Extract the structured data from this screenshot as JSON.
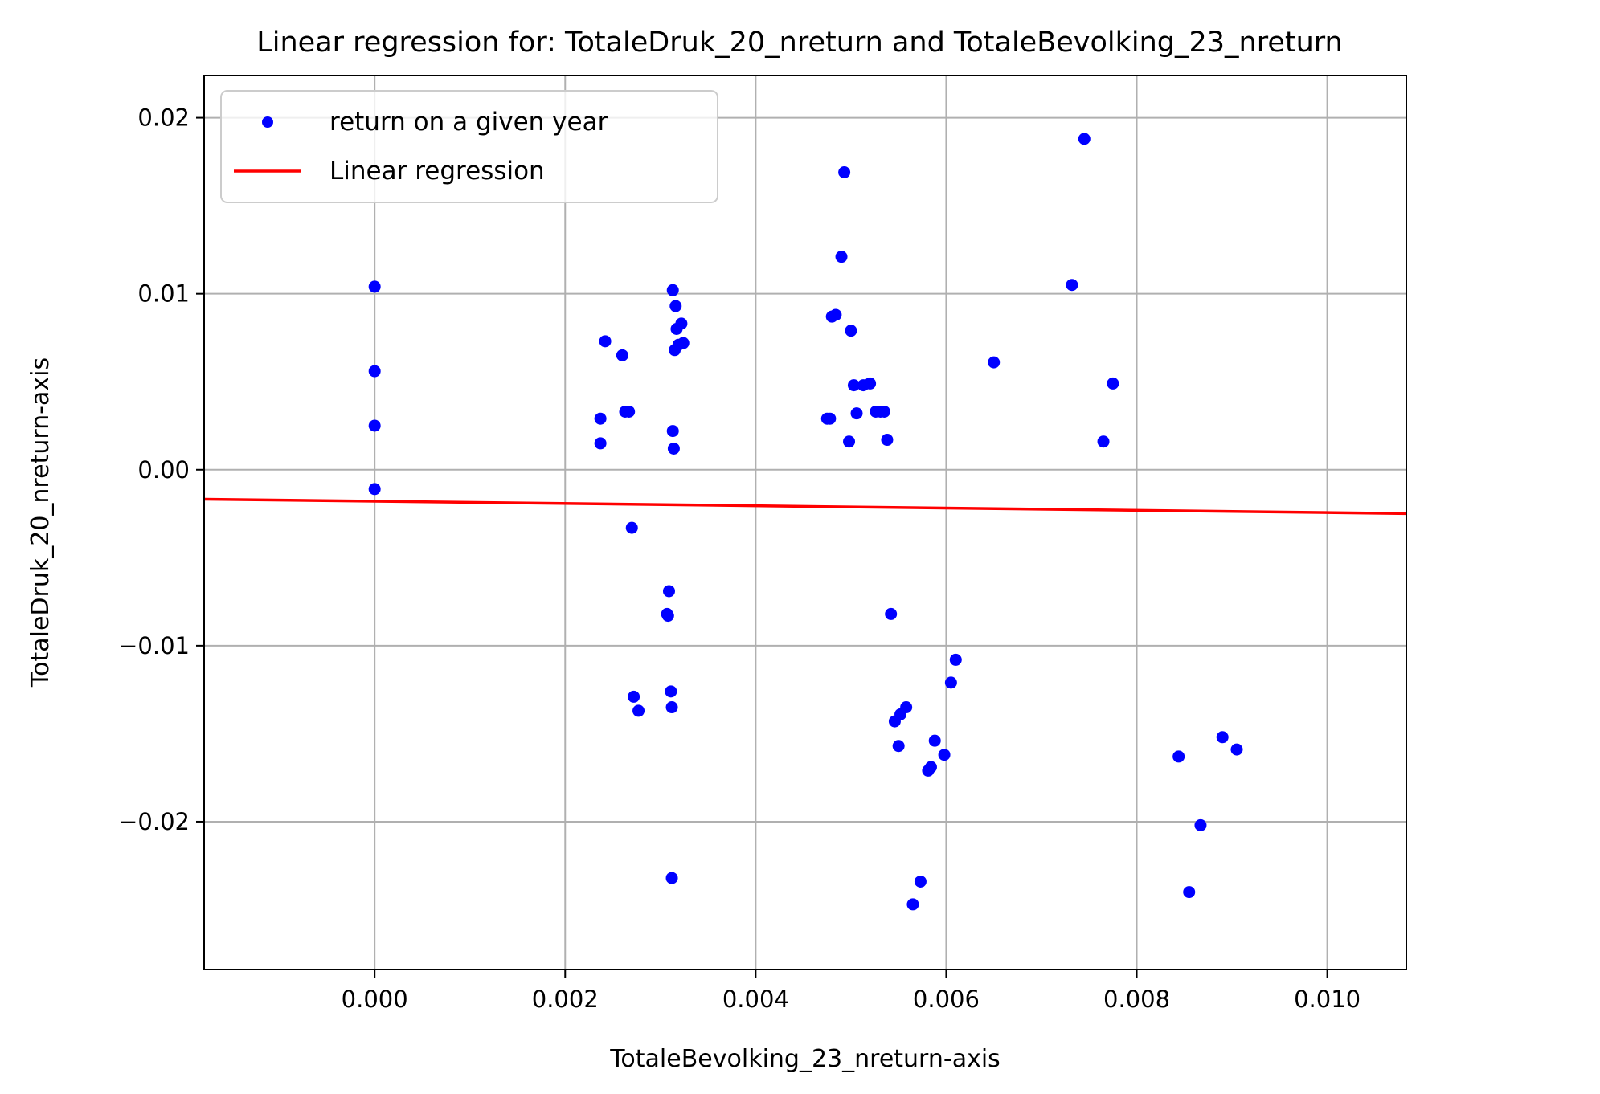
{
  "chart_data": {
    "type": "scatter",
    "title": "Linear regression for: TotaleDruk_20_nreturn and TotaleBevolking_23_nreturn",
    "xlabel": "TotaleBevolking_23_nreturn-axis",
    "ylabel": "TotaleDruk_20_nreturn-axis",
    "xlim": [
      -0.00179,
      0.01083
    ],
    "ylim": [
      -0.0284,
      0.0224
    ],
    "xticks": [
      0.0,
      0.002,
      0.004,
      0.006,
      0.008,
      0.01
    ],
    "xtick_labels": [
      "0.000",
      "0.002",
      "0.004",
      "0.006",
      "0.008",
      "0.010"
    ],
    "yticks": [
      -0.02,
      -0.01,
      0.0,
      0.01,
      0.02
    ],
    "ytick_labels": [
      "−0.02",
      "−0.01",
      "0.00",
      "0.01",
      "0.02"
    ],
    "grid": true,
    "legend_position": "top-left",
    "colors": {
      "scatter": "#0000ff",
      "regression": "#ff0000",
      "grid": "#b0b0b0"
    },
    "series": [
      {
        "name": "return on a given year",
        "kind": "scatter",
        "x": [
          0.0,
          0.0,
          0.0,
          0.0,
          0.00237,
          0.00237,
          0.00242,
          0.0026,
          0.00263,
          0.00267,
          0.0027,
          0.00272,
          0.00277,
          0.00307,
          0.00308,
          0.00309,
          0.00311,
          0.00312,
          0.00312,
          0.00313,
          0.00313,
          0.00314,
          0.00315,
          0.00316,
          0.00317,
          0.00319,
          0.00322,
          0.00324,
          0.00475,
          0.00478,
          0.0048,
          0.00484,
          0.0049,
          0.00493,
          0.00498,
          0.005,
          0.00503,
          0.00506,
          0.00513,
          0.0052,
          0.00526,
          0.00531,
          0.00535,
          0.00538,
          0.00542,
          0.00546,
          0.0055,
          0.00552,
          0.00558,
          0.00565,
          0.00573,
          0.00581,
          0.00584,
          0.00588,
          0.00598,
          0.00605,
          0.0061,
          0.0065,
          0.00732,
          0.00745,
          0.00765,
          0.00775,
          0.00844,
          0.00855,
          0.00867,
          0.0089,
          0.00905
        ],
        "y": [
          0.0104,
          0.0056,
          0.0025,
          -0.0011,
          0.0029,
          0.0015,
          0.0073,
          0.0065,
          0.0033,
          0.0033,
          -0.0033,
          -0.0129,
          -0.0137,
          -0.0082,
          -0.0083,
          -0.0069,
          -0.0126,
          -0.0135,
          -0.0232,
          0.0102,
          0.0022,
          0.0012,
          0.0068,
          0.0093,
          0.008,
          0.0071,
          0.0083,
          0.0072,
          0.0029,
          0.0029,
          0.0087,
          0.0088,
          0.0121,
          0.0169,
          0.0016,
          0.0079,
          0.0048,
          0.0032,
          0.0048,
          0.0049,
          0.0033,
          0.0033,
          0.0033,
          0.0017,
          -0.0082,
          -0.0143,
          -0.0157,
          -0.0139,
          -0.0135,
          -0.0247,
          -0.0234,
          -0.0171,
          -0.0169,
          -0.0154,
          -0.0162,
          -0.0121,
          -0.0108,
          0.0061,
          0.0105,
          0.0188,
          0.0016,
          0.0049,
          -0.0163,
          -0.024,
          -0.0202,
          -0.0152,
          -0.0159
        ]
      },
      {
        "name": "Linear regression",
        "kind": "line",
        "slope": -0.0647,
        "intercept": -0.00179
      }
    ]
  }
}
